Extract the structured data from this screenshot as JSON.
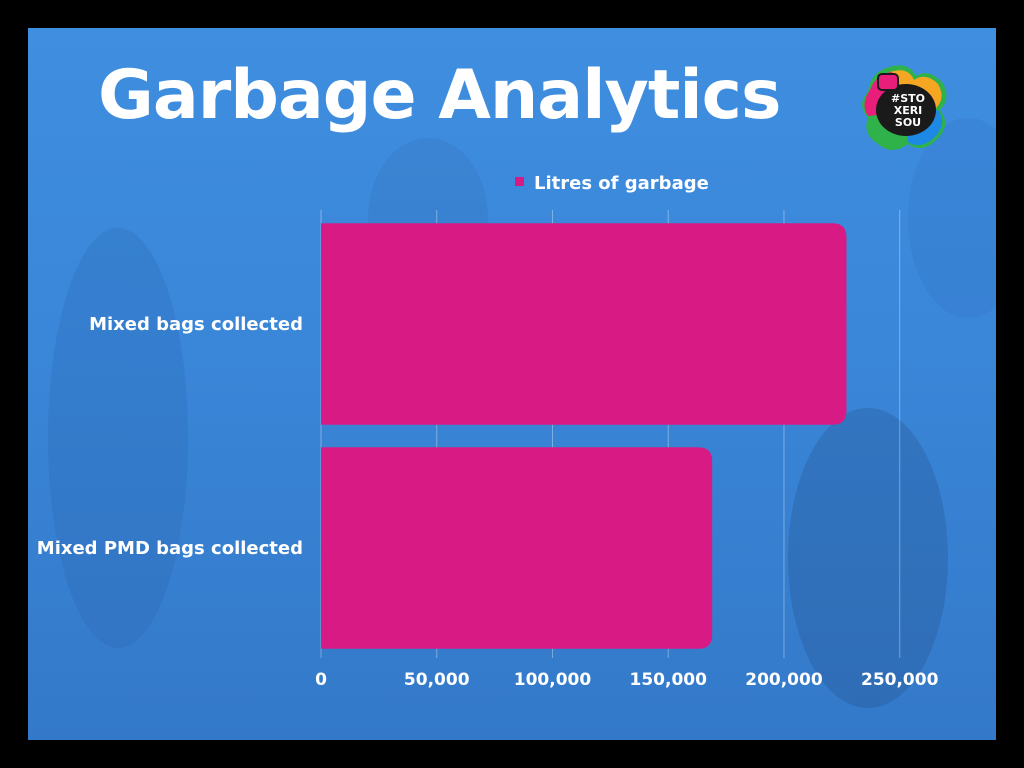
{
  "slide": {
    "title": "Garbage Analytics",
    "logo_text": [
      "#STO",
      "XERI",
      "SOU"
    ]
  },
  "colors": {
    "background": "#3a86d8",
    "bar": "#d81b84",
    "text": "#ffffff",
    "frame": "#000000"
  },
  "chart_data": {
    "type": "bar",
    "orientation": "horizontal",
    "categories": [
      "Mixed bags collected",
      "Mixed PMD bags collected"
    ],
    "series": [
      {
        "name": "Litres of garbage",
        "values": [
          227000,
          169000
        ]
      }
    ],
    "xlim": [
      0,
      270000
    ],
    "xticks": [
      0,
      50000,
      100000,
      150000,
      200000,
      250000
    ],
    "xtick_labels": [
      "0",
      "50,000",
      "100,000",
      "150,000",
      "200,000",
      "250,000"
    ],
    "grid": true,
    "legend_position": "top"
  }
}
